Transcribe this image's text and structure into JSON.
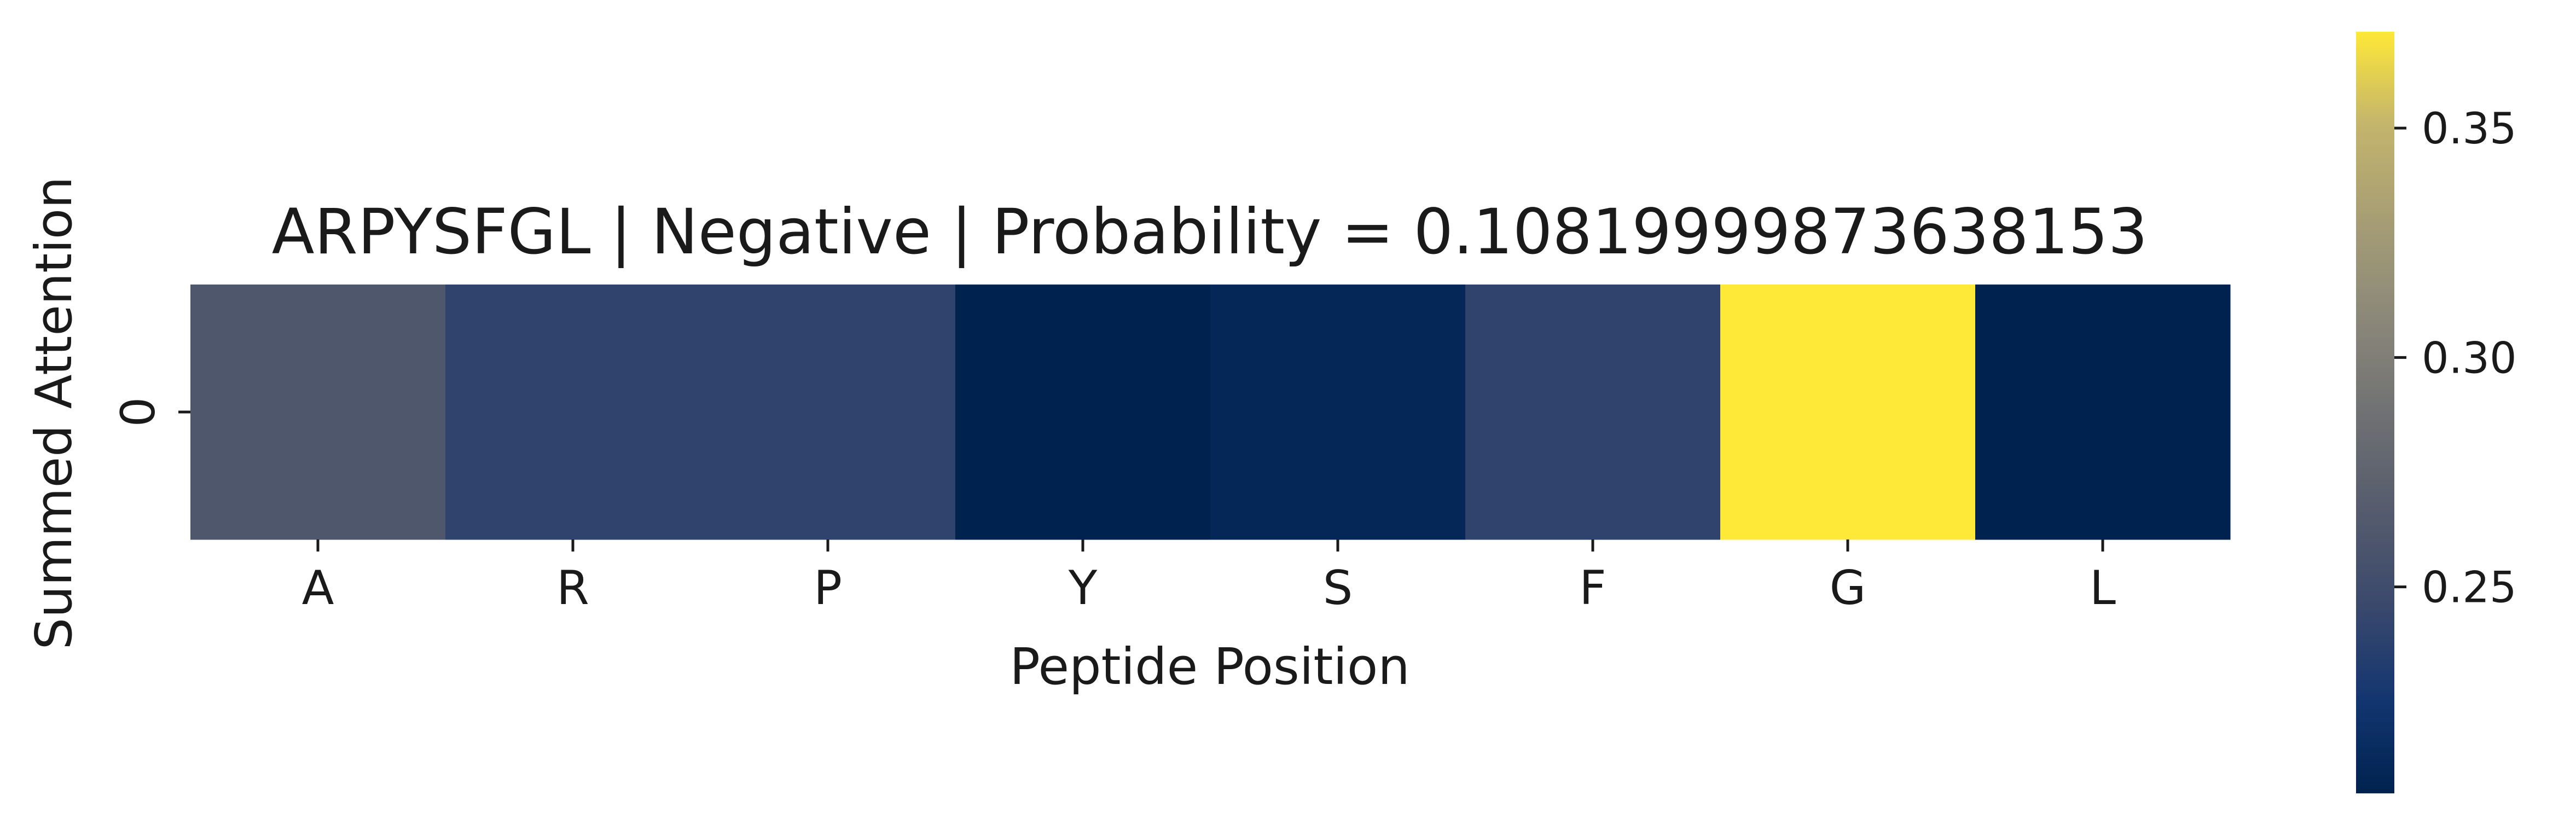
{
  "chart_data": {
    "type": "heatmap",
    "title": "ARPYSFGL | Negative | Probability = 0.10819999873638153",
    "xlabel": "Peptide Position",
    "ylabel": "Summed Attention",
    "x_categories": [
      "A",
      "R",
      "P",
      "Y",
      "S",
      "F",
      "G",
      "L"
    ],
    "y_categories": [
      "0"
    ],
    "values": [
      [
        0.262,
        0.24,
        0.24,
        0.205,
        0.21,
        0.24,
        0.371,
        0.205
      ]
    ],
    "colormap": "cividis",
    "colorbar": {
      "vmin": 0.205,
      "vmax": 0.371,
      "ticks": [
        "0.25",
        "0.30",
        "0.35"
      ],
      "tick_values": [
        0.25,
        0.3,
        0.35
      ]
    },
    "grid": false,
    "legend": "colorbar-right"
  }
}
